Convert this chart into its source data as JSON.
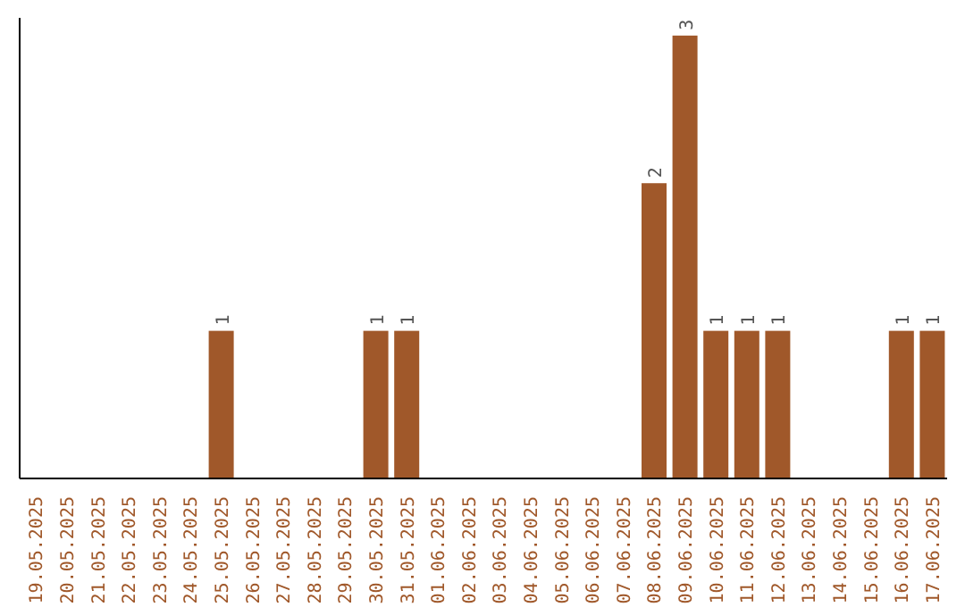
{
  "chart_data": {
    "type": "bar",
    "categories": [
      "19.05.2025",
      "20.05.2025",
      "21.05.2025",
      "22.05.2025",
      "23.05.2025",
      "24.05.2025",
      "25.05.2025",
      "26.05.2025",
      "27.05.2025",
      "28.05.2025",
      "29.05.2025",
      "30.05.2025",
      "31.05.2025",
      "01.06.2025",
      "02.06.2025",
      "03.06.2025",
      "04.06.2025",
      "05.06.2025",
      "06.06.2025",
      "07.06.2025",
      "08.06.2025",
      "09.06.2025",
      "10.06.2025",
      "11.06.2025",
      "12.06.2025",
      "13.06.2025",
      "14.06.2025",
      "15.06.2025",
      "16.06.2025",
      "17.06.2025"
    ],
    "values": [
      0,
      0,
      0,
      0,
      0,
      0,
      1,
      0,
      0,
      0,
      0,
      1,
      1,
      0,
      0,
      0,
      0,
      0,
      0,
      0,
      2,
      3,
      1,
      1,
      1,
      0,
      0,
      0,
      1,
      1
    ],
    "value_labels": [
      null,
      null,
      null,
      null,
      null,
      null,
      "1",
      null,
      null,
      null,
      null,
      "1",
      "1",
      null,
      null,
      null,
      null,
      null,
      null,
      null,
      "2",
      "3",
      "1",
      "1",
      "1",
      null,
      null,
      null,
      "1",
      "1"
    ],
    "color": "#a0582a",
    "grid": false
  }
}
